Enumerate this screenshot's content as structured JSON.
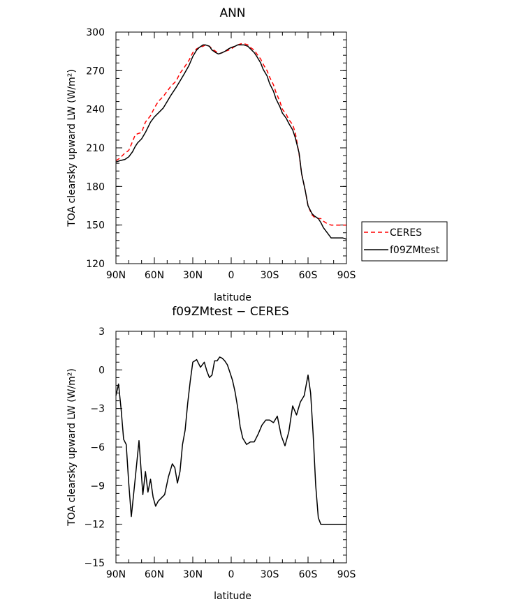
{
  "chart_data": [
    {
      "type": "line",
      "title": "ANN",
      "xlabel": "latitude",
      "ylabel": "TOA clearsky upward LW (W/m²)",
      "xlim": [
        -90,
        90
      ],
      "ylim": [
        120,
        300
      ],
      "xticks": [
        -90,
        -60,
        -30,
        0,
        30,
        60,
        90
      ],
      "xtick_labels": [
        "90N",
        "60N",
        "30N",
        "0",
        "30S",
        "60S",
        "90S"
      ],
      "yticks": [
        120,
        150,
        180,
        210,
        240,
        270,
        300
      ],
      "yticks_minor": 5,
      "grid": false,
      "legend": {
        "placement": "right-lower"
      },
      "series": [
        {
          "name": "CERES",
          "color": "#ff0000",
          "dash": "dashed",
          "x": [
            -90,
            -87,
            -83,
            -80,
            -77,
            -75,
            -73,
            -70,
            -67,
            -63,
            -60,
            -57,
            -53,
            -50,
            -47,
            -43,
            -40,
            -37,
            -33,
            -30,
            -27,
            -25,
            -22,
            -20,
            -17,
            -15,
            -12,
            -10,
            -7,
            -5,
            -2,
            0,
            3,
            5,
            8,
            10,
            13,
            15,
            18,
            20,
            23,
            25,
            28,
            30,
            33,
            35,
            38,
            40,
            43,
            45,
            48,
            50,
            53,
            55,
            58,
            60,
            63,
            65,
            68,
            70,
            72,
            75,
            78,
            80,
            82,
            85,
            87,
            90
          ],
          "y": [
            200,
            202,
            206,
            208,
            215,
            220,
            221,
            222,
            230,
            235,
            241,
            246,
            250,
            254,
            258,
            262,
            268,
            272,
            278,
            284,
            287,
            288,
            289,
            290,
            289,
            287,
            285,
            283,
            284,
            285,
            286,
            287,
            289,
            290,
            291,
            291,
            290,
            288,
            286,
            283,
            279,
            275,
            270,
            265,
            259,
            253,
            246,
            240,
            236,
            232,
            228,
            222,
            205,
            190,
            176,
            165,
            158,
            156,
            155,
            155,
            153,
            151,
            150,
            150,
            150,
            150,
            150,
            150
          ]
        },
        {
          "name": "f09ZMtest",
          "color": "#000000",
          "dash": "solid",
          "x": [
            -90,
            -87,
            -83,
            -80,
            -77,
            -75,
            -73,
            -70,
            -67,
            -63,
            -60,
            -57,
            -53,
            -50,
            -47,
            -43,
            -40,
            -37,
            -33,
            -30,
            -27,
            -25,
            -22,
            -20,
            -17,
            -15,
            -12,
            -10,
            -7,
            -5,
            -2,
            0,
            3,
            5,
            8,
            10,
            13,
            15,
            18,
            20,
            23,
            25,
            28,
            30,
            33,
            35,
            38,
            40,
            43,
            45,
            48,
            50,
            53,
            55,
            58,
            60,
            63,
            65,
            68,
            70,
            72,
            75,
            78,
            80,
            82,
            85,
            87,
            90
          ],
          "y": [
            199,
            200,
            201,
            203,
            207,
            211,
            214,
            217,
            222,
            230,
            234,
            237,
            241,
            246,
            251,
            257,
            262,
            267,
            274,
            281,
            286,
            288,
            290,
            290,
            289,
            286,
            284,
            283,
            284,
            285,
            287,
            288,
            289,
            290,
            290,
            290,
            289,
            287,
            284,
            281,
            276,
            271,
            266,
            260,
            254,
            248,
            242,
            237,
            233,
            229,
            224,
            218,
            206,
            190,
            176,
            165,
            159,
            157,
            155,
            152,
            148,
            144,
            140,
            140,
            140,
            140,
            140,
            139
          ]
        }
      ]
    },
    {
      "type": "line",
      "title": "f09ZMtest − CERES",
      "xlabel": "latitude",
      "ylabel": "TOA clearsky upward LW (W/m²)",
      "xlim": [
        -90,
        90
      ],
      "ylim": [
        -15,
        3
      ],
      "xticks": [
        -90,
        -60,
        -30,
        0,
        30,
        60,
        90
      ],
      "xtick_labels": [
        "90N",
        "60N",
        "30N",
        "0",
        "30S",
        "60S",
        "90S"
      ],
      "yticks": [
        -15,
        -12,
        -9,
        -6,
        -3,
        0,
        3
      ],
      "ytick_labels": [
        "−15",
        "−12",
        "−9",
        "−6",
        "−3",
        "0",
        "3"
      ],
      "yticks_minor": 5,
      "grid": false,
      "series": [
        {
          "name": "",
          "color": "#000000",
          "dash": "solid",
          "x": [
            -90,
            -88,
            -86,
            -84,
            -82,
            -80,
            -78,
            -75,
            -72,
            -69,
            -67,
            -65,
            -63,
            -61,
            -59,
            -57,
            -55,
            -52,
            -49,
            -46,
            -44,
            -42,
            -40,
            -38,
            -36,
            -34,
            -32,
            -30,
            -27,
            -24,
            -21,
            -19,
            -17,
            -15,
            -13,
            -11,
            -9,
            -7,
            -5,
            -3,
            -1,
            1,
            3,
            5,
            7,
            9,
            12,
            15,
            18,
            21,
            24,
            27,
            30,
            33,
            36,
            39,
            42,
            45,
            48,
            51,
            54,
            57,
            60,
            62,
            64,
            66,
            68,
            70,
            72,
            74,
            76,
            78,
            80,
            82,
            84,
            86,
            88,
            90
          ],
          "y": [
            -2.0,
            -1.1,
            -3.0,
            -5.4,
            -5.8,
            -8.8,
            -11.4,
            -8.5,
            -5.5,
            -9.7,
            -7.9,
            -9.5,
            -8.5,
            -9.9,
            -10.6,
            -10.2,
            -10.0,
            -9.7,
            -8.3,
            -7.3,
            -7.6,
            -8.8,
            -7.9,
            -5.8,
            -4.7,
            -2.6,
            -0.9,
            0.6,
            0.8,
            0.2,
            0.6,
            -0.1,
            -0.6,
            -0.4,
            0.7,
            0.7,
            1.0,
            0.9,
            0.7,
            0.4,
            -0.2,
            -0.8,
            -1.7,
            -2.9,
            -4.4,
            -5.3,
            -5.8,
            -5.6,
            -5.6,
            -5.0,
            -4.3,
            -3.9,
            -3.9,
            -4.1,
            -3.6,
            -5.1,
            -5.9,
            -4.8,
            -2.8,
            -3.5,
            -2.5,
            -2.0,
            -0.4,
            -1.8,
            -5.0,
            -9.0,
            -11.5,
            -12.0,
            -12.0,
            -12.0,
            -12.0,
            -12.0,
            -12.0,
            -12.0,
            -12.0,
            -12.0,
            -12.0,
            -12.0
          ]
        }
      ]
    }
  ]
}
